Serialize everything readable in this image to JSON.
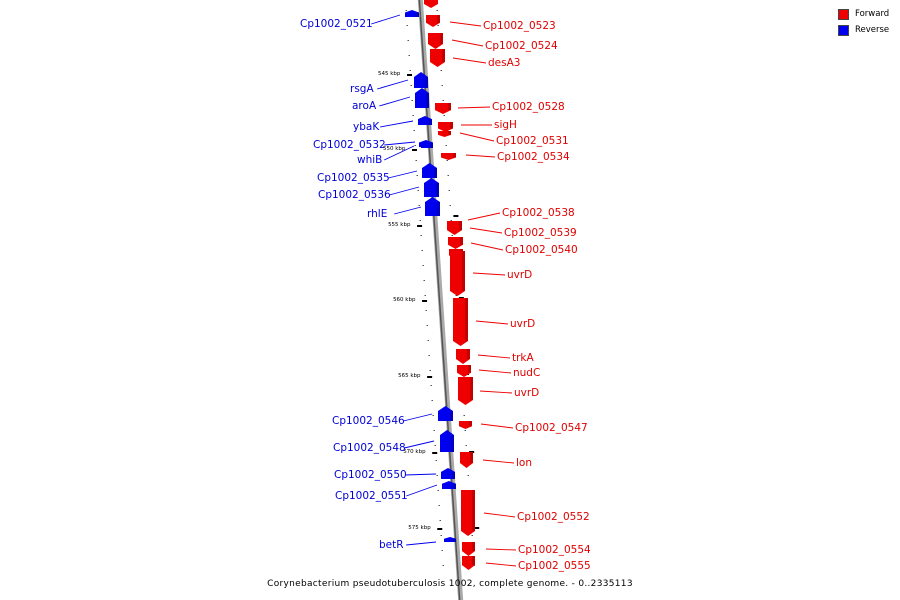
{
  "caption": "Corynebacterium pseudotuberculosis 1002, complete genome. - 0..2335113",
  "legend": [
    {
      "label": "Forward",
      "color": "#ee0000"
    },
    {
      "label": "Reverse",
      "color": "#0000ee"
    }
  ],
  "scale_labels": [
    "545 kbp",
    "550 kbp",
    "555 kbp",
    "560 kbp",
    "565 kbp",
    "570 kbp",
    "575 kbp"
  ],
  "genes": [
    {
      "name": "Cp1002_0521",
      "strand": "reverse"
    },
    {
      "name": "Cp1002_0523",
      "strand": "forward"
    },
    {
      "name": "Cp1002_0524",
      "strand": "forward"
    },
    {
      "name": "desA3",
      "strand": "forward"
    },
    {
      "name": "rsgA",
      "strand": "reverse"
    },
    {
      "name": "aroA",
      "strand": "reverse"
    },
    {
      "name": "Cp1002_0528",
      "strand": "forward"
    },
    {
      "name": "sigH",
      "strand": "forward"
    },
    {
      "name": "ybaK",
      "strand": "reverse"
    },
    {
      "name": "Cp1002_0531",
      "strand": "forward"
    },
    {
      "name": "Cp1002_0532",
      "strand": "reverse"
    },
    {
      "name": "whiB",
      "strand": "reverse"
    },
    {
      "name": "Cp1002_0534",
      "strand": "forward"
    },
    {
      "name": "Cp1002_0535",
      "strand": "reverse"
    },
    {
      "name": "Cp1002_0536",
      "strand": "reverse"
    },
    {
      "name": "rhlE",
      "strand": "reverse"
    },
    {
      "name": "Cp1002_0538",
      "strand": "forward"
    },
    {
      "name": "Cp1002_0539",
      "strand": "forward"
    },
    {
      "name": "Cp1002_0540",
      "strand": "forward"
    },
    {
      "name": "uvrD",
      "strand": "forward"
    },
    {
      "name": "uvrD",
      "strand": "forward"
    },
    {
      "name": "trkA",
      "strand": "forward"
    },
    {
      "name": "nudC",
      "strand": "forward"
    },
    {
      "name": "uvrD",
      "strand": "forward"
    },
    {
      "name": "Cp1002_0546",
      "strand": "reverse"
    },
    {
      "name": "Cp1002_0547",
      "strand": "forward"
    },
    {
      "name": "Cp1002_0548",
      "strand": "reverse"
    },
    {
      "name": "lon",
      "strand": "forward"
    },
    {
      "name": "Cp1002_0550",
      "strand": "reverse"
    },
    {
      "name": "Cp1002_0551",
      "strand": "reverse"
    },
    {
      "name": "Cp1002_0552",
      "strand": "forward"
    },
    {
      "name": "betR",
      "strand": "reverse"
    },
    {
      "name": "Cp1002_0554",
      "strand": "forward"
    },
    {
      "name": "Cp1002_0555",
      "strand": "forward"
    }
  ]
}
